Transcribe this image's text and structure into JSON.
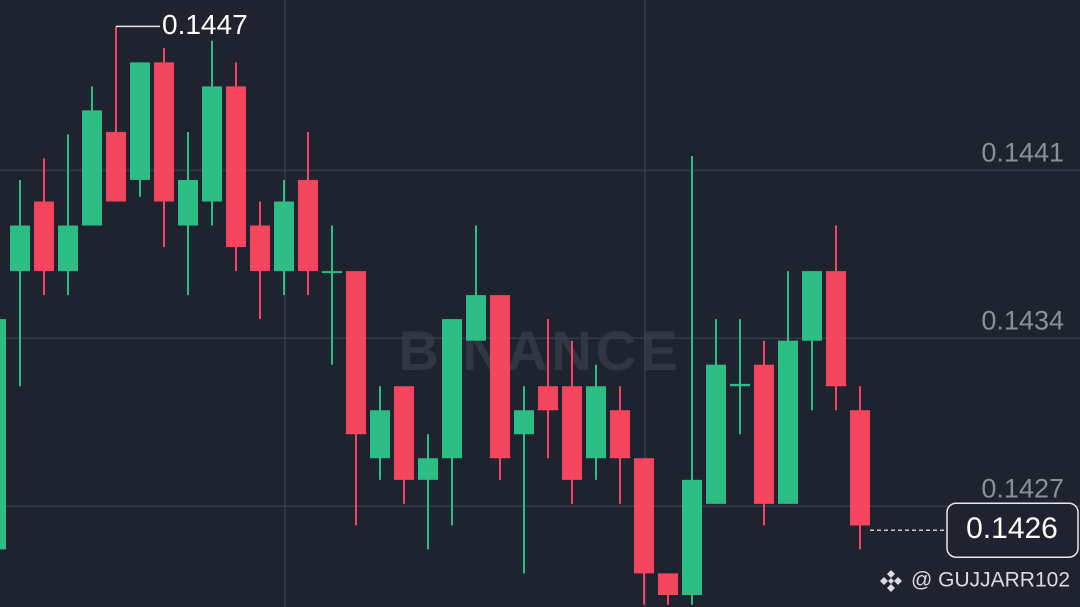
{
  "chart_data": {
    "type": "candlestick",
    "open": [
      0.14252,
      0.14368,
      0.14397,
      0.14368,
      0.14387,
      0.14426,
      0.14406,
      0.14455,
      0.14387,
      0.14397,
      0.14445,
      0.14387,
      0.14368,
      0.14406,
      0.14368,
      0.14368,
      0.1429,
      0.1432,
      0.14281,
      0.1429,
      0.14339,
      0.14358,
      0.143,
      0.1432,
      0.1432,
      0.1429,
      0.1431,
      0.1429,
      0.14242,
      0.14233,
      0.14271,
      0.1432,
      0.14329,
      0.14271,
      0.14339,
      0.14368,
      0.1431
    ],
    "high": [
      0.14348,
      0.14406,
      0.14415,
      0.14425,
      0.14445,
      0.1447,
      0.14455,
      0.14461,
      0.14426,
      0.14464,
      0.14455,
      0.14397,
      0.14406,
      0.14426,
      0.14387,
      0.14368,
      0.1432,
      0.1432,
      0.143,
      0.14348,
      0.14387,
      0.14358,
      0.1432,
      0.14348,
      0.14339,
      0.14329,
      0.1432,
      0.1429,
      0.14242,
      0.14416,
      0.14348,
      0.14348,
      0.14339,
      0.14368,
      0.14368,
      0.14387,
      0.1432
    ],
    "low": [
      0.14252,
      0.1432,
      0.14358,
      0.14358,
      0.14387,
      0.14397,
      0.14399,
      0.14378,
      0.14358,
      0.14387,
      0.14368,
      0.14348,
      0.14358,
      0.14358,
      0.14329,
      0.14262,
      0.14281,
      0.14271,
      0.14252,
      0.14262,
      0.14339,
      0.14281,
      0.14242,
      0.1429,
      0.14271,
      0.14281,
      0.14271,
      0.14229,
      0.14229,
      0.14229,
      0.14271,
      0.143,
      0.14262,
      0.14271,
      0.1431,
      0.1431,
      0.14252
    ],
    "close": [
      0.14348,
      0.14387,
      0.14368,
      0.14387,
      0.14435,
      0.14397,
      0.14455,
      0.14397,
      0.14406,
      0.14445,
      0.14378,
      0.14368,
      0.14397,
      0.14368,
      0.14368,
      0.143,
      0.1431,
      0.14281,
      0.1429,
      0.14348,
      0.14358,
      0.1429,
      0.1431,
      0.1431,
      0.14281,
      0.1432,
      0.1429,
      0.14242,
      0.14233,
      0.14281,
      0.14329,
      0.14321,
      0.14271,
      0.14339,
      0.14368,
      0.1432,
      0.14262
    ],
    "up_color": "#2ebd85",
    "down_color": "#f6465d",
    "ylim": [
      0.14228,
      0.14481
    ],
    "yticks": [
      0.1427,
      0.1434,
      0.1441
    ],
    "grid": true,
    "high_label": 0.1447,
    "current_price": 0.1426,
    "watermark": "BINANCE",
    "footer": "@ GUJJARR102"
  }
}
